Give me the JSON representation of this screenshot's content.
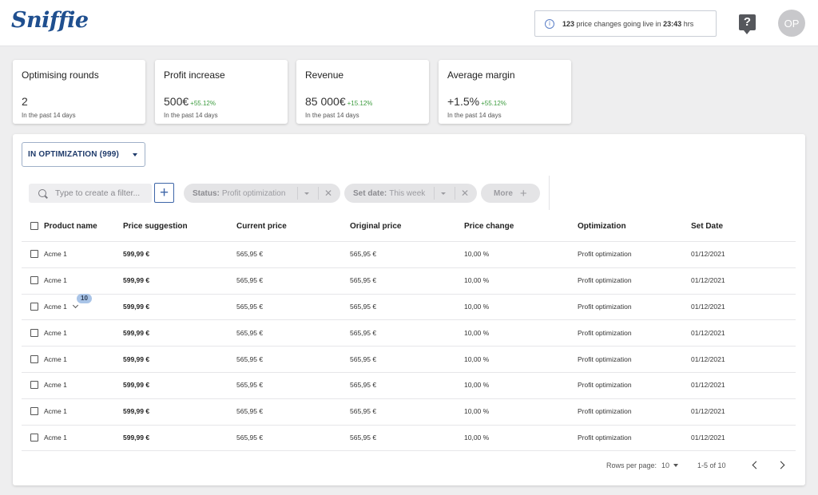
{
  "header": {
    "logo_text": "Sniffie",
    "notice": {
      "count": "123",
      "text": "price changes going live in",
      "time": "23:43",
      "unit": "hrs"
    },
    "help_label": "?",
    "avatar_initials": "OP"
  },
  "kpis": [
    {
      "title": "Optimising rounds",
      "value": "2",
      "delta": "",
      "sub": "In the past 14 days"
    },
    {
      "title": "Profit increase",
      "value": "500€",
      "delta": "+55.12%",
      "sub": "In the past 14 days"
    },
    {
      "title": "Revenue",
      "value": "85 000€",
      "delta": "+15.12%",
      "sub": "In the past 14 days"
    },
    {
      "title": "Average margin",
      "value": "+1.5%",
      "delta": "+55.12%",
      "sub": "In the past 14 days"
    }
  ],
  "view_select": {
    "label": "IN OPTIMIZATION (999)"
  },
  "filters": {
    "search_placeholder": "Type to create a filter...",
    "add_label": "+",
    "chips": [
      {
        "key": "Status:",
        "value": "Profit optimization"
      },
      {
        "key": "Set date:",
        "value": "This week"
      }
    ],
    "more_label": "More",
    "more_plus": "+",
    "close_symbol": "✕"
  },
  "table": {
    "columns": [
      "Product name",
      "Price suggestion",
      "Current price",
      "Original price",
      "Price change",
      "Optimization",
      "Set Date"
    ],
    "rows": [
      {
        "product": "Acme 1",
        "suggestion": "599,99 €",
        "current": "565,95 €",
        "original": "565,95 €",
        "change": "10,00 %",
        "optimization": "Profit optimization",
        "date": "01/12/2021"
      },
      {
        "product": "Acme 1",
        "suggestion": "599,99 €",
        "current": "565,95 €",
        "original": "565,95 €",
        "change": "10,00 %",
        "optimization": "Profit optimization",
        "date": "01/12/2021"
      },
      {
        "product": "Acme 1",
        "suggestion": "599,99 €",
        "current": "565,95 €",
        "original": "565,95 €",
        "change": "10,00 %",
        "optimization": "Profit optimization",
        "date": "01/12/2021",
        "variants": "10"
      },
      {
        "product": "Acme 1",
        "suggestion": "599,99 €",
        "current": "565,95 €",
        "original": "565,95 €",
        "change": "10,00 %",
        "optimization": "Profit optimization",
        "date": "01/12/2021"
      },
      {
        "product": "Acme 1",
        "suggestion": "599,99 €",
        "current": "565,95 €",
        "original": "565,95 €",
        "change": "10,00 %",
        "optimization": "Profit optimization",
        "date": "01/12/2021"
      },
      {
        "product": "Acme 1",
        "suggestion": "599,99 €",
        "current": "565,95 €",
        "original": "565,95 €",
        "change": "10,00 %",
        "optimization": "Profit optimization",
        "date": "01/12/2021"
      },
      {
        "product": "Acme 1",
        "suggestion": "599,99 €",
        "current": "565,95 €",
        "original": "565,95 €",
        "change": "10,00 %",
        "optimization": "Profit optimization",
        "date": "01/12/2021"
      },
      {
        "product": "Acme 1",
        "suggestion": "599,99 €",
        "current": "565,95 €",
        "original": "565,95 €",
        "change": "10,00 %",
        "optimization": "Profit optimization",
        "date": "01/12/2021"
      }
    ]
  },
  "pagination": {
    "rows_per_page_label": "Rows per page:",
    "rows_per_page_value": "10",
    "range": "1-5 of 10"
  },
  "colors": {
    "brand": "#1f4f8f",
    "accent": "#3e66a8",
    "positive": "#3d9c3f",
    "badge": "#a9c4e7"
  }
}
